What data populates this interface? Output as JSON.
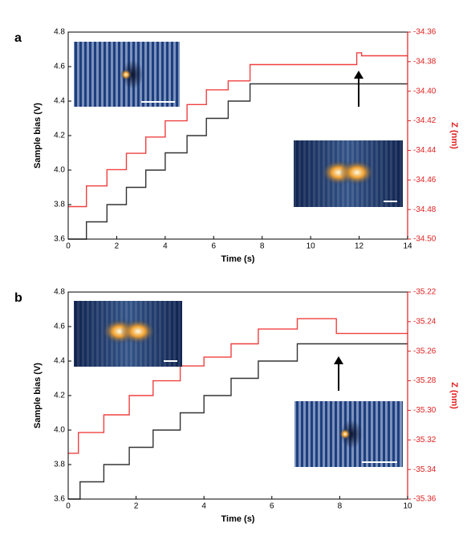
{
  "chart_data": [
    {
      "type": "line",
      "label": "a",
      "xlabel": "Time (s)",
      "ylabel": "Sample bias (V)",
      "y2label": "Z (nm)",
      "xlim": [
        0,
        14
      ],
      "xticks": [
        0,
        2,
        4,
        6,
        8,
        10,
        12,
        14
      ],
      "ylim": [
        3.6,
        4.8
      ],
      "yticks": [
        3.6,
        3.8,
        {
          "value": 4,
          "label": "4.0"
        },
        4.2,
        4.4,
        4.6,
        4.8
      ],
      "y2lim": [
        -34.5,
        -34.36
      ],
      "y2ticks": [
        {
          "value": -34.5,
          "label": "-34.50"
        },
        -34.48,
        -34.46,
        -34.44,
        -34.42,
        {
          "value": -34.4,
          "label": "-34.40"
        },
        -34.38,
        -34.36
      ],
      "series": [
        {
          "name": "Sample bias",
          "color": "#333333",
          "x": [
            0,
            0.75,
            0.75,
            1.6,
            1.6,
            2.4,
            2.4,
            3.2,
            3.2,
            4.0,
            4.0,
            4.9,
            4.9,
            5.7,
            5.7,
            6.6,
            6.6,
            7.5,
            7.5,
            14
          ],
          "values": [
            3.6,
            3.6,
            3.7,
            3.7,
            3.8,
            3.8,
            3.9,
            3.9,
            4.0,
            4.0,
            4.1,
            4.1,
            4.2,
            4.2,
            4.3,
            4.3,
            4.4,
            4.4,
            4.5,
            4.5
          ]
        },
        {
          "name": "Z",
          "color": "#f04040",
          "axis": "y2",
          "x": [
            0,
            0.75,
            0.75,
            1.6,
            1.6,
            2.4,
            2.4,
            3.2,
            3.2,
            4.0,
            4.0,
            4.9,
            4.9,
            5.7,
            5.7,
            6.6,
            6.6,
            7.5,
            7.5,
            11.9,
            11.9,
            12.1,
            12.1,
            14
          ],
          "values": [
            -34.478,
            -34.478,
            -34.464,
            -34.464,
            -34.453,
            -34.453,
            -34.442,
            -34.442,
            -34.431,
            -34.431,
            -34.42,
            -34.42,
            -34.409,
            -34.409,
            -34.399,
            -34.399,
            -34.393,
            -34.393,
            -34.382,
            -34.382,
            -34.374,
            -34.374,
            -34.376,
            -34.376
          ]
        }
      ]
    },
    {
      "type": "line",
      "label": "b",
      "xlabel": "Time (s)",
      "ylabel": "Sample bias (V)",
      "y2label": "Z (nm)",
      "xlim": [
        0,
        10
      ],
      "xticks": [
        0,
        2,
        4,
        6,
        8,
        10
      ],
      "ylim": [
        3.6,
        4.8
      ],
      "yticks": [
        3.6,
        3.8,
        {
          "value": 4,
          "label": "4.0"
        },
        4.2,
        4.4,
        4.6,
        4.8
      ],
      "y2lim": [
        -35.36,
        -35.22
      ],
      "y2ticks": [
        -35.36,
        -35.34,
        -35.32,
        {
          "value": -35.3,
          "label": "-35.30"
        },
        -35.28,
        -35.26,
        -35.24,
        -35.22
      ],
      "series": [
        {
          "name": "Sample bias",
          "color": "#333333",
          "x": [
            0,
            0.35,
            0.35,
            1.05,
            1.05,
            1.8,
            1.8,
            2.5,
            2.5,
            3.3,
            3.3,
            4.0,
            4.0,
            4.8,
            4.8,
            5.6,
            5.6,
            6.75,
            6.75,
            10
          ],
          "values": [
            3.6,
            3.6,
            3.7,
            3.7,
            3.8,
            3.8,
            3.9,
            3.9,
            4.0,
            4.0,
            4.1,
            4.1,
            4.2,
            4.2,
            4.3,
            4.3,
            4.4,
            4.4,
            4.5,
            4.5
          ]
        },
        {
          "name": "Z",
          "color": "#f04040",
          "axis": "y2",
          "x": [
            0,
            0.3,
            0.3,
            1.05,
            1.05,
            1.8,
            1.8,
            2.5,
            2.5,
            3.3,
            3.3,
            4.0,
            4.0,
            4.8,
            4.8,
            5.6,
            5.6,
            6.75,
            6.75,
            7.9,
            7.9,
            10
          ],
          "values": [
            -35.329,
            -35.329,
            -35.315,
            -35.315,
            -35.303,
            -35.303,
            -35.29,
            -35.29,
            -35.28,
            -35.28,
            -35.27,
            -35.27,
            -35.264,
            -35.264,
            -35.255,
            -35.255,
            -35.245,
            -35.245,
            -35.238,
            -35.238,
            -35.248,
            -35.248
          ]
        }
      ]
    }
  ]
}
